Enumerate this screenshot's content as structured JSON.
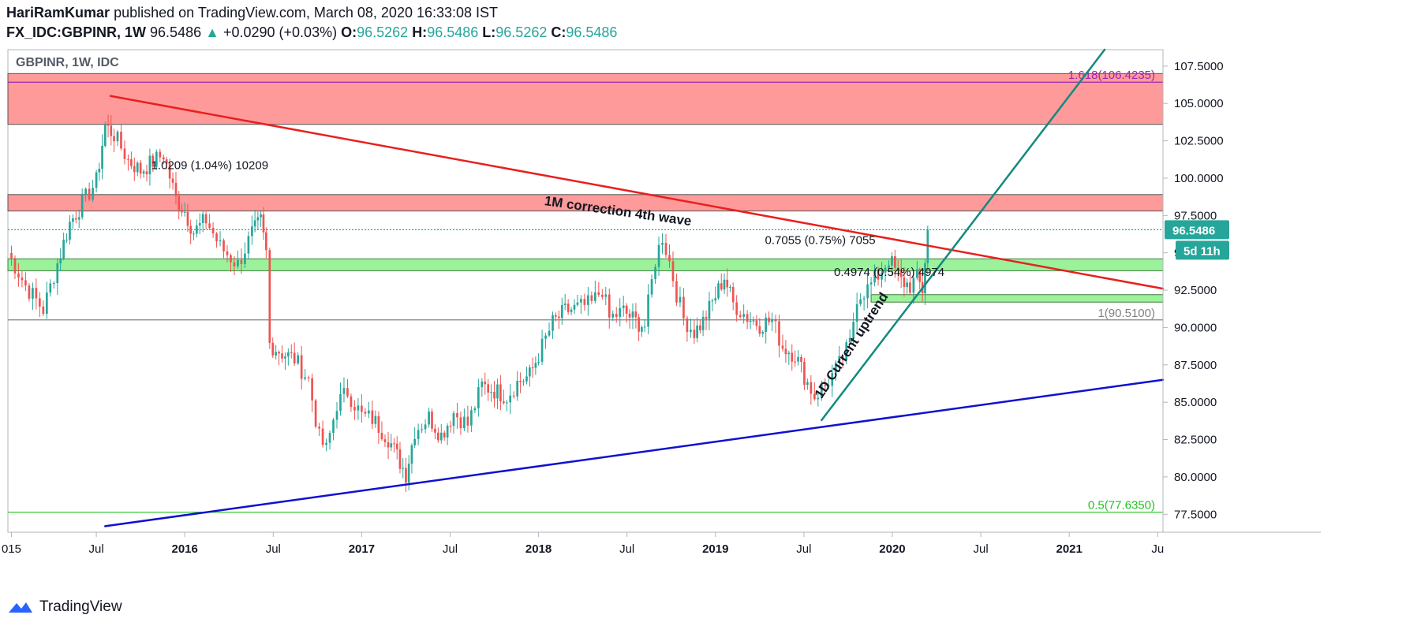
{
  "header": {
    "author": "HariRamKumar",
    "published_text": "published on TradingView.com, March 08, 2020 16:33:08 IST",
    "symbol": "FX_IDC:GBPINR, 1W",
    "last": "96.5486",
    "change_arrow": "▲",
    "change": "+0.0290 (+0.03%)",
    "o_label": "O:",
    "o_value": "96.5262",
    "h_label": "H:",
    "h_value": "96.5486",
    "l_label": "L:",
    "l_value": "96.5262",
    "c_label": "C:",
    "c_value": "96.5486"
  },
  "footer": {
    "brand": "TradingView"
  },
  "colors": {
    "up": "#26a69a",
    "down": "#ef5350",
    "resistance_zone": "#ff9a9a",
    "support_zone": "#9bf29b",
    "downtrend": "#e8201e",
    "uptrend": "#128a7e",
    "long_support": "#1010d0"
  },
  "chart_data": {
    "type": "candlestick",
    "title": "GBPINR, 1W, IDC",
    "y_axis": {
      "ticks": [
        "107.5000",
        "105.0000",
        "102.5000",
        "100.0000",
        "97.5000",
        "95.0000",
        "92.5000",
        "90.0000",
        "87.5000",
        "85.0000",
        "82.5000",
        "80.0000",
        "77.5000"
      ],
      "range": [
        76.3,
        108.6
      ],
      "current_price_label": "96.5486",
      "countdown_label": "5d 11h"
    },
    "x_axis": {
      "ticks": [
        {
          "label": "015",
          "t": 2015.02,
          "bold": false
        },
        {
          "label": "Jul",
          "t": 2015.5,
          "bold": false
        },
        {
          "label": "2016",
          "t": 2016.0,
          "bold": true
        },
        {
          "label": "Jul",
          "t": 2016.5,
          "bold": false
        },
        {
          "label": "2017",
          "t": 2017.0,
          "bold": true
        },
        {
          "label": "Jul",
          "t": 2017.5,
          "bold": false
        },
        {
          "label": "2018",
          "t": 2018.0,
          "bold": true
        },
        {
          "label": "Jul",
          "t": 2018.5,
          "bold": false
        },
        {
          "label": "2019",
          "t": 2019.0,
          "bold": true
        },
        {
          "label": "Jul",
          "t": 2019.5,
          "bold": false
        },
        {
          "label": "2020",
          "t": 2020.0,
          "bold": true
        },
        {
          "label": "Jul",
          "t": 2020.5,
          "bold": false
        },
        {
          "label": "2021",
          "t": 2021.0,
          "bold": true
        },
        {
          "label": "Ju",
          "t": 2021.5,
          "bold": false
        }
      ],
      "range": [
        2015.0,
        2021.53
      ]
    },
    "weekly_closes": [
      [
        2015.0,
        95.0
      ],
      [
        2015.1,
        92.8
      ],
      [
        2015.2,
        91.2
      ],
      [
        2015.28,
        94.3
      ],
      [
        2015.35,
        97.0
      ],
      [
        2015.42,
        98.3
      ],
      [
        2015.5,
        99.8
      ],
      [
        2015.55,
        103.5
      ],
      [
        2015.6,
        102.9
      ],
      [
        2015.68,
        101.2
      ],
      [
        2015.75,
        100.5
      ],
      [
        2015.82,
        101.1
      ],
      [
        2015.88,
        101.6
      ],
      [
        2015.95,
        98.6
      ],
      [
        2016.0,
        97.8
      ],
      [
        2016.05,
        96.4
      ],
      [
        2016.12,
        97.2
      ],
      [
        2016.2,
        95.4
      ],
      [
        2016.3,
        94.2
      ],
      [
        2016.38,
        96.3
      ],
      [
        2016.43,
        97.1
      ],
      [
        2016.46,
        95.0
      ],
      [
        2016.48,
        88.9
      ],
      [
        2016.55,
        88.3
      ],
      [
        2016.62,
        87.9
      ],
      [
        2016.7,
        86.5
      ],
      [
        2016.76,
        82.6
      ],
      [
        2016.8,
        81.8
      ],
      [
        2016.86,
        84.9
      ],
      [
        2016.92,
        85.7
      ],
      [
        2017.0,
        84.1
      ],
      [
        2017.06,
        83.9
      ],
      [
        2017.15,
        82.6
      ],
      [
        2017.2,
        81.4
      ],
      [
        2017.25,
        80.2
      ],
      [
        2017.3,
        83.1
      ],
      [
        2017.38,
        84.0
      ],
      [
        2017.45,
        82.8
      ],
      [
        2017.52,
        84.3
      ],
      [
        2017.6,
        83.5
      ],
      [
        2017.68,
        86.1
      ],
      [
        2017.75,
        85.8
      ],
      [
        2017.82,
        85.4
      ],
      [
        2017.88,
        86.3
      ],
      [
        2017.95,
        86.8
      ],
      [
        2018.0,
        88.2
      ],
      [
        2018.08,
        90.3
      ],
      [
        2018.15,
        91.1
      ],
      [
        2018.22,
        91.3
      ],
      [
        2018.3,
        91.6
      ],
      [
        2018.36,
        92.6
      ],
      [
        2018.4,
        90.6
      ],
      [
        2018.48,
        91.1
      ],
      [
        2018.55,
        90.4
      ],
      [
        2018.6,
        90.1
      ],
      [
        2018.66,
        94.5
      ],
      [
        2018.7,
        96.1
      ],
      [
        2018.74,
        94.4
      ],
      [
        2018.78,
        92.3
      ],
      [
        2018.82,
        90.6
      ],
      [
        2018.88,
        89.7
      ],
      [
        2018.93,
        90.4
      ],
      [
        2019.0,
        92.1
      ],
      [
        2019.05,
        93.4
      ],
      [
        2019.1,
        91.6
      ],
      [
        2019.18,
        90.7
      ],
      [
        2019.25,
        90.2
      ],
      [
        2019.32,
        90.5
      ],
      [
        2019.38,
        88.7
      ],
      [
        2019.45,
        88.2
      ],
      [
        2019.52,
        86.3
      ],
      [
        2019.56,
        85.4
      ],
      [
        2019.62,
        86.1
      ],
      [
        2019.7,
        87.5
      ],
      [
        2019.76,
        88.9
      ],
      [
        2019.8,
        92.1
      ],
      [
        2019.86,
        92.6
      ],
      [
        2019.92,
        93.5
      ],
      [
        2019.98,
        94.6
      ],
      [
        2020.05,
        93.1
      ],
      [
        2020.1,
        92.8
      ],
      [
        2020.14,
        93.3
      ],
      [
        2020.17,
        92.5
      ],
      [
        2020.2,
        96.55
      ]
    ],
    "horizontal_levels": [
      {
        "y": 106.4235,
        "label": "1.618(106.4235)",
        "color": "#9c27b0"
      },
      {
        "y": 90.51,
        "label": "1(90.5100)",
        "color": "#808080"
      },
      {
        "y": 77.635,
        "label": "0.5(77.6350)",
        "color": "#21c221"
      },
      {
        "y": 96.5486,
        "label": "",
        "color": "#26a69a"
      }
    ],
    "zones": [
      {
        "kind": "resistance",
        "t1": 2015.0,
        "t2": 2021.53,
        "y1": 103.6,
        "y2": 107.0
      },
      {
        "kind": "resistance",
        "t1": 2015.0,
        "t2": 2021.53,
        "y1": 97.8,
        "y2": 98.9
      },
      {
        "kind": "support",
        "t1": 2015.0,
        "t2": 2021.53,
        "y1": 93.8,
        "y2": 94.6
      },
      {
        "kind": "support",
        "t1": 2019.88,
        "t2": 2021.53,
        "y1": 91.7,
        "y2": 92.2
      }
    ],
    "trendlines": [
      {
        "name": "1M correction 4th wave",
        "color": "#e8201e",
        "t1": 2015.58,
        "y1": 105.5,
        "t2": 2021.53,
        "y2": 92.6
      },
      {
        "name": "1D Current uptrend",
        "color": "#128a7e",
        "t1": 2019.6,
        "y1": 83.8,
        "t2": 2021.2,
        "y2": 108.6
      },
      {
        "name": "",
        "color": "#1010d0",
        "t1": 2015.55,
        "y1": 76.7,
        "t2": 2021.53,
        "y2": 86.5
      }
    ],
    "annotations": [
      {
        "text": "1M correction 4th wave",
        "t": 2018.03,
        "y": 98.2,
        "rotate": 8,
        "bold": true
      },
      {
        "text": "1D Current uptrend",
        "t": 2019.6,
        "y": 85.2,
        "rotate": -57,
        "bold": true
      },
      {
        "text": "1.0209 (1.04%) 10209",
        "t": 2015.81,
        "y": 100.6,
        "rotate": 0,
        "bold": false
      },
      {
        "text": "0.7055 (0.75%) 7055",
        "t": 2019.28,
        "y": 95.6,
        "rotate": 0,
        "bold": false
      },
      {
        "text": "0.4974 (0.54%) 4974",
        "t": 2019.67,
        "y": 93.45,
        "rotate": 0,
        "bold": false
      }
    ]
  }
}
